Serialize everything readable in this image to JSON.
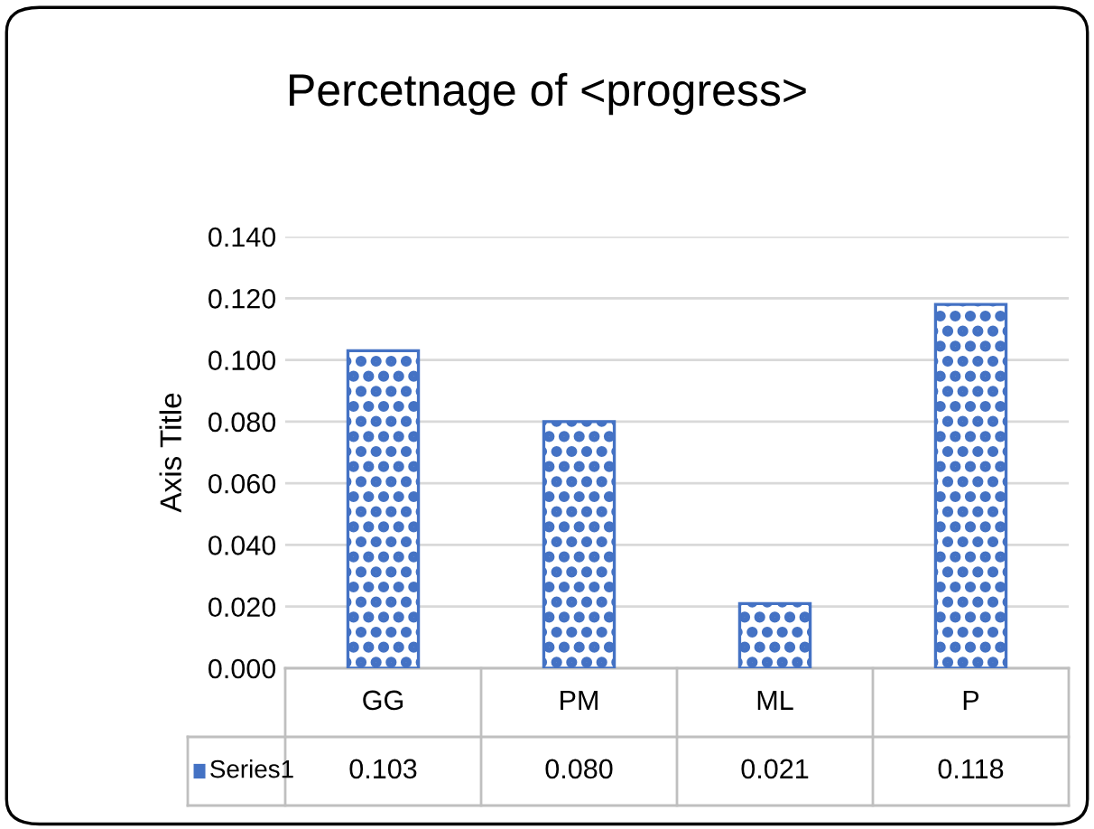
{
  "chart_data": {
    "type": "bar",
    "title": "Percetnage of <progress>",
    "ylabel": "Axis Title",
    "categories": [
      "GG",
      "PM",
      "ML",
      "P"
    ],
    "series": [
      {
        "name": "Series1",
        "color": "#4472c4",
        "values": [
          0.103,
          0.08,
          0.021,
          0.118
        ],
        "value_labels": [
          "0.103",
          "0.080",
          "0.021",
          "0.118"
        ]
      }
    ],
    "ylim": [
      0,
      0.14
    ],
    "yticks": [
      {
        "value": 0,
        "label": "0.000"
      },
      {
        "value": 0.02,
        "label": "0.020"
      },
      {
        "value": 0.04,
        "label": "0.040"
      },
      {
        "value": 0.06,
        "label": "0.060"
      },
      {
        "value": 0.08,
        "label": "0.080"
      },
      {
        "value": 0.1,
        "label": "0.100"
      },
      {
        "value": 0.12,
        "label": "0.120"
      },
      {
        "value": 0.14,
        "label": "0.140"
      }
    ],
    "grid": "y",
    "data_labels": true
  }
}
